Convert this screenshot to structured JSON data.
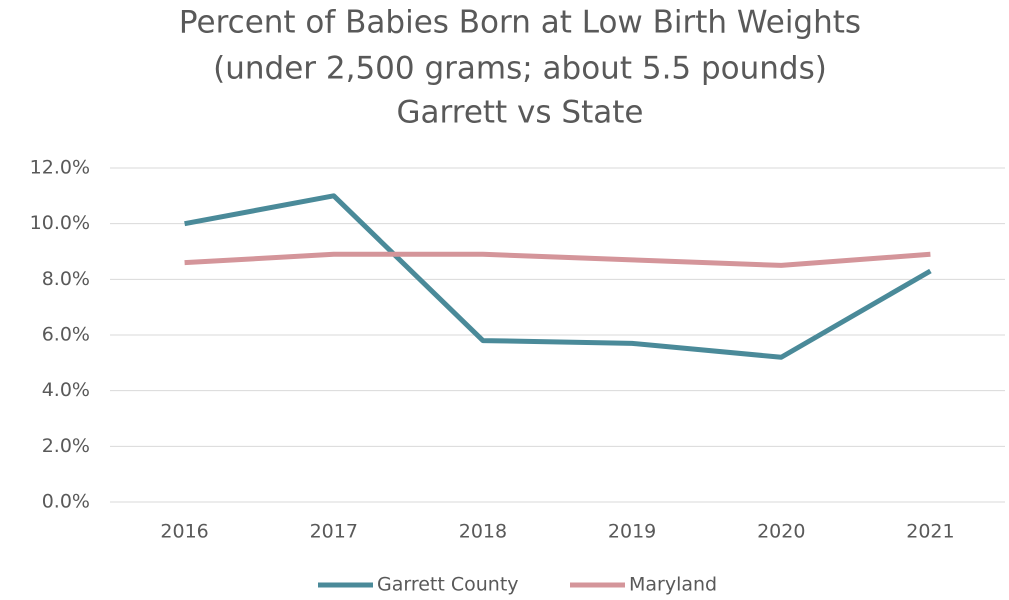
{
  "chart_data": {
    "type": "line",
    "title": [
      "Percent of Babies Born at Low Birth Weights",
      "(under 2,500 grams; about 5.5 pounds)",
      "Garrett vs State"
    ],
    "categories": [
      "2016",
      "2017",
      "2018",
      "2019",
      "2020",
      "2021"
    ],
    "series": [
      {
        "name": "Garrett County",
        "color": "#4a8a99",
        "values": [
          10.0,
          11.0,
          5.8,
          5.7,
          5.2,
          8.3
        ]
      },
      {
        "name": "Maryland",
        "color": "#d4959a",
        "values": [
          8.6,
          8.9,
          8.9,
          8.7,
          8.5,
          8.9
        ]
      }
    ],
    "ylim": [
      0,
      12
    ],
    "yticks": [
      {
        "value": 0,
        "label": "0.0%"
      },
      {
        "value": 2,
        "label": "2.0%"
      },
      {
        "value": 4,
        "label": "4.0%"
      },
      {
        "value": 6,
        "label": "6.0%"
      },
      {
        "value": 8,
        "label": "8.0%"
      },
      {
        "value": 10,
        "label": "10.0%"
      },
      {
        "value": 12,
        "label": "12.0%"
      }
    ],
    "grid": true,
    "legend": "bottom"
  }
}
